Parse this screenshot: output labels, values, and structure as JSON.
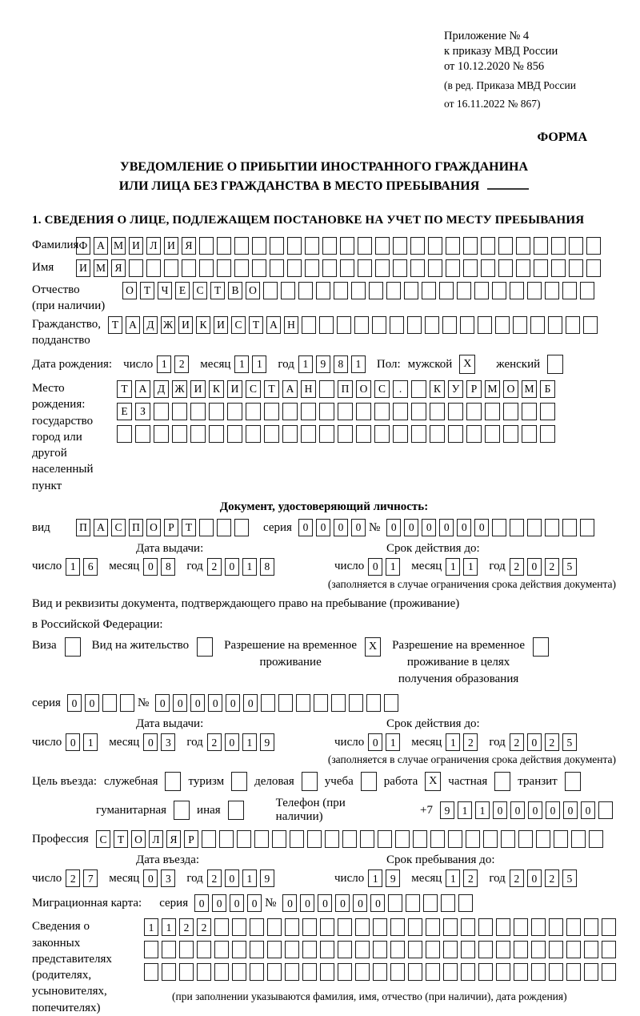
{
  "marks": {
    "check": "X"
  },
  "header": {
    "line1": "Приложение № 4",
    "line2": "к приказу МВД России",
    "line3": "от 10.12.2020 № 856",
    "line4": "(в ред. Приказа МВД России",
    "line5": "от 16.11.2022 № 867)",
    "forma": "ФОРМА"
  },
  "title": {
    "line1": "УВЕДОМЛЕНИЕ О ПРИБЫТИИ ИНОСТРАННОГО ГРАЖДАНИНА",
    "line2": "ИЛИ ЛИЦА БЕЗ ГРАЖДАНСТВА В МЕСТО ПРЕБЫВАНИЯ"
  },
  "section1": {
    "heading": "1. СВЕДЕНИЯ О ЛИЦЕ, ПОДЛЕЖАЩЕМ ПОСТАНОВКЕ НА УЧЕТ ПО МЕСТУ ПРЕБЫВАНИЯ"
  },
  "fields": {
    "surname": {
      "label": "Фамилия",
      "value": "ФАМИЛИЯ",
      "total": 30
    },
    "name": {
      "label": "Имя",
      "value": "ИМЯ",
      "total": 30
    },
    "patronymic": {
      "label1": "Отчество",
      "label2": "(при наличии)",
      "value": "ОТЧЕСТВО",
      "total": 27
    },
    "citizenship": {
      "label1": "Гражданство,",
      "label2": "подданство",
      "value": "ТАДЖИКИСТАН",
      "total": 28
    },
    "birth_date": {
      "label": "Дата рождения:",
      "day": {
        "label": "число",
        "value": "12",
        "total": 2
      },
      "month": {
        "label": "месяц",
        "value": "11",
        "total": 2
      },
      "year": {
        "label": "год",
        "value": "1981",
        "total": 4
      }
    },
    "gender": {
      "label": "Пол:",
      "male": {
        "label": "мужской",
        "checked": true
      },
      "female": {
        "label": "женский",
        "checked": false
      }
    },
    "birth_place": {
      "label1": "Место рождения:",
      "label2": "государство",
      "label3": "город или другой",
      "label4": "населенный пункт",
      "row1": {
        "value": "ТАДЖИКИСТАН ПОС. КУРМОМБ",
        "total": 24
      },
      "row2": {
        "value": "ЕЗ",
        "total": 24
      },
      "row3": {
        "value": "",
        "total": 24
      }
    },
    "identity_doc": {
      "heading": "Документ, удостоверяющий личность:",
      "kind": {
        "label": "вид",
        "value": "ПАСПОРТ",
        "total": 10
      },
      "series": {
        "label": "серия",
        "value": "0000",
        "total": 4
      },
      "number": {
        "label": "№",
        "value": "000000",
        "total": 12
      },
      "issue": {
        "label": "Дата выдачи:",
        "day": {
          "label": "число",
          "value": "16",
          "total": 2
        },
        "month": {
          "label": "месяц",
          "value": "08",
          "total": 2
        },
        "year": {
          "label": "год",
          "value": "2018",
          "total": 4
        }
      },
      "valid": {
        "label": "Срок действия до:",
        "day": {
          "label": "число",
          "value": "01",
          "total": 2
        },
        "month": {
          "label": "месяц",
          "value": "11",
          "total": 2
        },
        "year": {
          "label": "год",
          "value": "2025",
          "total": 4
        }
      },
      "note": "(заполняется в случае ограничения срока действия документа)"
    },
    "residence_doc": {
      "line1": "Вид и реквизиты документа, подтверждающего право на пребывание (проживание)",
      "line2": "в Российской Федерации:",
      "visa": {
        "label": "Виза",
        "checked": false
      },
      "residence_permit": {
        "label": "Вид на жительство",
        "checked": false
      },
      "temp_permit": {
        "label1": "Разрешение на временное",
        "label2": "проживание",
        "checked": true
      },
      "edu_permit": {
        "label1": "Разрешение на временное",
        "label2": "проживание в целях",
        "label3": "получения образования",
        "checked": false
      },
      "series": {
        "label": "серия",
        "value": "00",
        "total": 4
      },
      "number": {
        "label": "№",
        "value": "000000",
        "total": 14
      },
      "issue": {
        "label": "Дата выдачи:",
        "day": {
          "label": "число",
          "value": "01",
          "total": 2
        },
        "month": {
          "label": "месяц",
          "value": "03",
          "total": 2
        },
        "year": {
          "label": "год",
          "value": "2019",
          "total": 4
        }
      },
      "valid": {
        "label": "Срок действия до:",
        "day": {
          "label": "число",
          "value": "01",
          "total": 2
        },
        "month": {
          "label": "месяц",
          "value": "12",
          "total": 2
        },
        "year": {
          "label": "год",
          "value": "2025",
          "total": 4
        }
      },
      "note": "(заполняется в случае ограничения срока действия документа)"
    },
    "purpose": {
      "label": "Цель въезда:",
      "options_row1": [
        {
          "label": "служебная",
          "checked": false
        },
        {
          "label": "туризм",
          "checked": false
        },
        {
          "label": "деловая",
          "checked": false
        },
        {
          "label": "учеба",
          "checked": false
        },
        {
          "label": "работа",
          "checked": true
        },
        {
          "label": "частная",
          "checked": false
        },
        {
          "label": "транзит",
          "checked": false
        }
      ],
      "options_row2": [
        {
          "label": "гуманитарная",
          "checked": false
        },
        {
          "label": "иная",
          "checked": false
        }
      ]
    },
    "phone": {
      "label": "Телефон (при наличии)",
      "prefix": "+7",
      "value": "911000000",
      "total": 10
    },
    "profession": {
      "label": "Профессия",
      "value": "СТОЛЯР",
      "total": 29
    },
    "entry": {
      "issue": {
        "label": "Дата въезда:",
        "day": {
          "label": "число",
          "value": "27",
          "total": 2
        },
        "month": {
          "label": "месяц",
          "value": "03",
          "total": 2
        },
        "year": {
          "label": "год",
          "value": "2019",
          "total": 4
        }
      },
      "valid": {
        "label": "Срок пребывания до:",
        "day": {
          "label": "число",
          "value": "19",
          "total": 2
        },
        "month": {
          "label": "месяц",
          "value": "12",
          "total": 2
        },
        "year": {
          "label": "год",
          "value": "2025",
          "total": 4
        }
      }
    },
    "migration_card": {
      "label": "Миграционная карта:",
      "series": {
        "label": "серия",
        "value": "0000",
        "total": 4
      },
      "number": {
        "label": "№",
        "value": "000000",
        "total": 11
      }
    },
    "representatives": {
      "label1": "Сведения о",
      "label2": "законных",
      "label3": "представителях",
      "label4": "(родителях,",
      "label5": "усыновителях,",
      "label6": "попечителях)",
      "row1": {
        "value": "1122",
        "total": 27
      },
      "row2": {
        "value": "",
        "total": 27
      },
      "row3": {
        "value": "",
        "total": 27
      },
      "note": "(при заполнении указываются фамилия, имя, отчество (при наличии), дата рождения)"
    }
  }
}
